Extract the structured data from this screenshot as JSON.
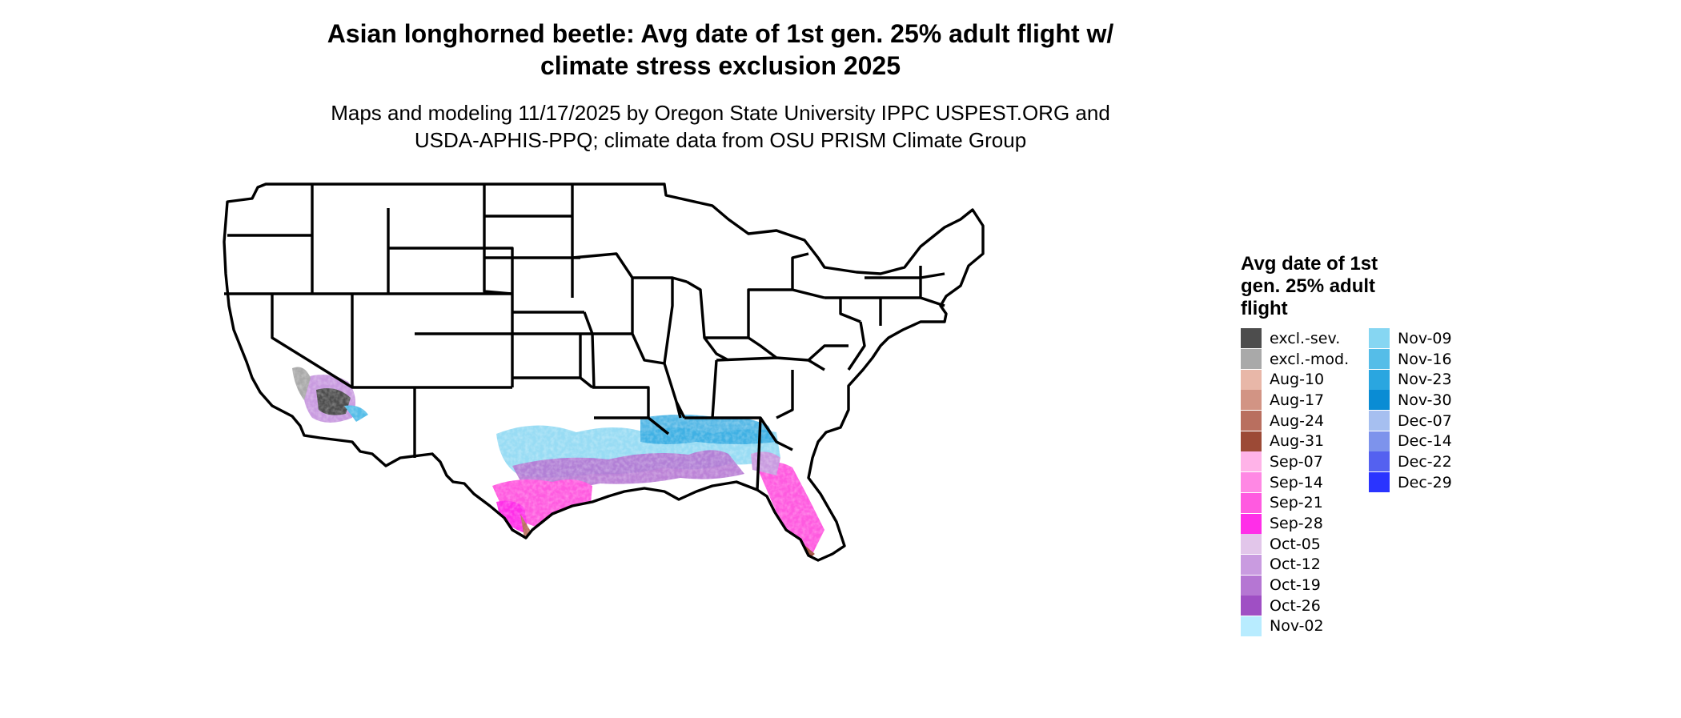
{
  "map": {
    "title_lines": [
      "Asian longhorned beetle: Avg date of 1st gen. 25% adult flight w/",
      "climate stress exclusion 2025"
    ],
    "subtitle_lines": [
      "Maps and modeling 11/17/2025 by Oregon State University IPPC USPEST.ORG and",
      "USDA-APHIS-PPQ; climate data from OSU PRISM Climate Group"
    ],
    "region": "Contiguous United States with state boundaries",
    "legend": {
      "title_lines": [
        "Avg date of 1st",
        "gen. 25% adult",
        "flight"
      ],
      "col1": [
        {
          "label": "excl.-sev.",
          "color": "#4d4d4d"
        },
        {
          "label": "excl.-mod.",
          "color": "#a9a9a9"
        },
        {
          "label": "Aug-10",
          "color": "#e8b7a8"
        },
        {
          "label": "Aug-17",
          "color": "#d29484"
        },
        {
          "label": "Aug-24",
          "color": "#b96f5f"
        },
        {
          "label": "Aug-31",
          "color": "#9c4a36"
        },
        {
          "label": "Sep-07",
          "color": "#ffb3e8"
        },
        {
          "label": "Sep-14",
          "color": "#ff88e4"
        },
        {
          "label": "Sep-21",
          "color": "#ff5ae0"
        },
        {
          "label": "Sep-28",
          "color": "#ff2ee8"
        },
        {
          "label": "Oct-05",
          "color": "#e2c6ea"
        },
        {
          "label": "Oct-12",
          "color": "#c99be0"
        },
        {
          "label": "Oct-19",
          "color": "#b576d3"
        },
        {
          "label": "Oct-26",
          "color": "#9f4fc4"
        },
        {
          "label": "Nov-02",
          "color": "#b8ecff"
        }
      ],
      "col2": [
        {
          "label": "Nov-09",
          "color": "#86d6f2"
        },
        {
          "label": "Nov-16",
          "color": "#55bde8"
        },
        {
          "label": "Nov-23",
          "color": "#2aa6e0"
        },
        {
          "label": "Nov-30",
          "color": "#0a8cd4"
        },
        {
          "label": "Dec-07",
          "color": "#a6bff0"
        },
        {
          "label": "Dec-14",
          "color": "#7d93ec"
        },
        {
          "label": "Dec-22",
          "color": "#5461f0"
        },
        {
          "label": "Dec-29",
          "color": "#2a34ff"
        }
      ]
    }
  }
}
